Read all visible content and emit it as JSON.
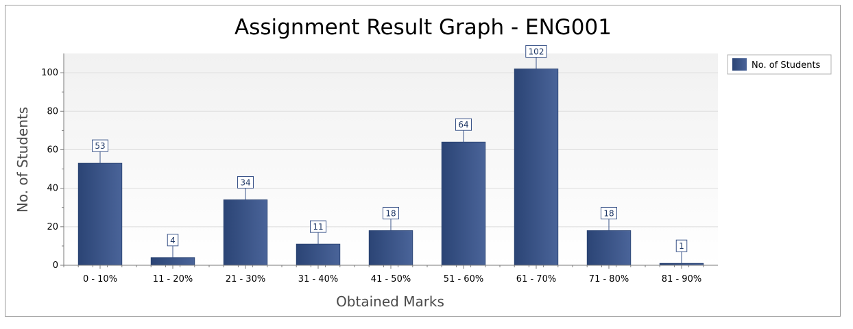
{
  "chart_data": {
    "type": "bar",
    "title": "Assignment Result Graph - ENG001",
    "xlabel": "Obtained Marks",
    "ylabel": "No. of Students",
    "categories": [
      "0 - 10%",
      "11 - 20%",
      "21 - 30%",
      "31 - 40%",
      "41 - 50%",
      "51 - 60%",
      "61 - 70%",
      "71 - 80%",
      "81 - 90%"
    ],
    "series": [
      {
        "name": "No. of Students",
        "values": [
          53,
          4,
          34,
          11,
          18,
          64,
          102,
          18,
          1
        ],
        "color": "#3a5489"
      }
    ],
    "ylim": [
      0,
      110
    ],
    "yticks": [
      0,
      20,
      40,
      60,
      80,
      100
    ],
    "grid": true,
    "legend": "top-right",
    "data_labels": true
  }
}
